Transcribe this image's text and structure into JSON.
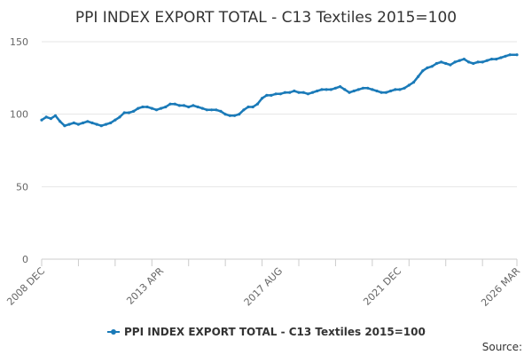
{
  "chart_data": {
    "type": "line",
    "title": "PPI INDEX EXPORT TOTAL - C13 Textiles 2015=100",
    "xlabel": "",
    "ylabel": "",
    "ylim": [
      0,
      150
    ],
    "y_ticks": [
      0,
      50,
      100,
      150
    ],
    "x_range": [
      "2008-12",
      "2026-03"
    ],
    "x_tick_labels": [
      "2008 DEC",
      "2013 APR",
      "2017 AUG",
      "2021 DEC",
      "2026 MAR"
    ],
    "grid": true,
    "legend_position": "bottom",
    "series": [
      {
        "name": "PPI INDEX EXPORT TOTAL - C13 Textiles 2015=100",
        "color": "#1a7ab8",
        "x": [
          "2008-12",
          "2009-02",
          "2009-04",
          "2009-06",
          "2009-08",
          "2009-10",
          "2009-12",
          "2010-02",
          "2010-04",
          "2010-06",
          "2010-08",
          "2010-10",
          "2010-12",
          "2011-02",
          "2011-04",
          "2011-06",
          "2011-08",
          "2011-10",
          "2011-12",
          "2012-02",
          "2012-04",
          "2012-06",
          "2012-08",
          "2012-10",
          "2012-12",
          "2013-02",
          "2013-04",
          "2013-06",
          "2013-08",
          "2013-10",
          "2013-12",
          "2014-02",
          "2014-04",
          "2014-06",
          "2014-08",
          "2014-10",
          "2014-12",
          "2015-02",
          "2015-04",
          "2015-06",
          "2015-08",
          "2015-10",
          "2015-12",
          "2016-02",
          "2016-04",
          "2016-06",
          "2016-08",
          "2016-10",
          "2016-12",
          "2017-02",
          "2017-04",
          "2017-06",
          "2017-08",
          "2017-10",
          "2017-12",
          "2018-02",
          "2018-04",
          "2018-06",
          "2018-08",
          "2018-10",
          "2018-12",
          "2019-02",
          "2019-04",
          "2019-06",
          "2019-08",
          "2019-10",
          "2019-12",
          "2020-02",
          "2020-04",
          "2020-06",
          "2020-08",
          "2020-10",
          "2020-12",
          "2021-02",
          "2021-04",
          "2021-06",
          "2021-08",
          "2021-10",
          "2021-12",
          "2022-02",
          "2022-04",
          "2022-06",
          "2022-08",
          "2022-10",
          "2022-12",
          "2023-02",
          "2023-04",
          "2023-06",
          "2023-08",
          "2023-10",
          "2023-12",
          "2024-02",
          "2024-04",
          "2024-06",
          "2024-08",
          "2024-10",
          "2024-12",
          "2025-02",
          "2025-04",
          "2025-06",
          "2025-08",
          "2025-10",
          "2025-12",
          "2026-03"
        ],
        "values": [
          96,
          98,
          97,
          99,
          95,
          92,
          93,
          94,
          93,
          94,
          95,
          94,
          93,
          92,
          93,
          94,
          96,
          98,
          101,
          101,
          102,
          104,
          105,
          105,
          104,
          103,
          104,
          105,
          107,
          107,
          106,
          106,
          105,
          106,
          105,
          104,
          103,
          103,
          103,
          102,
          100,
          99,
          99,
          100,
          103,
          105,
          105,
          107,
          111,
          113,
          113,
          114,
          114,
          115,
          115,
          116,
          115,
          115,
          114,
          115,
          116,
          117,
          117,
          117,
          118,
          119,
          117,
          115,
          116,
          117,
          118,
          118,
          117,
          116,
          115,
          115,
          116,
          117,
          117,
          118,
          120,
          122,
          126,
          130,
          132,
          133,
          135,
          136,
          135,
          134,
          136,
          137,
          138,
          136,
          135,
          136,
          136,
          137,
          138,
          138,
          139,
          140,
          141,
          141
        ]
      }
    ]
  },
  "source_label": "Source:"
}
